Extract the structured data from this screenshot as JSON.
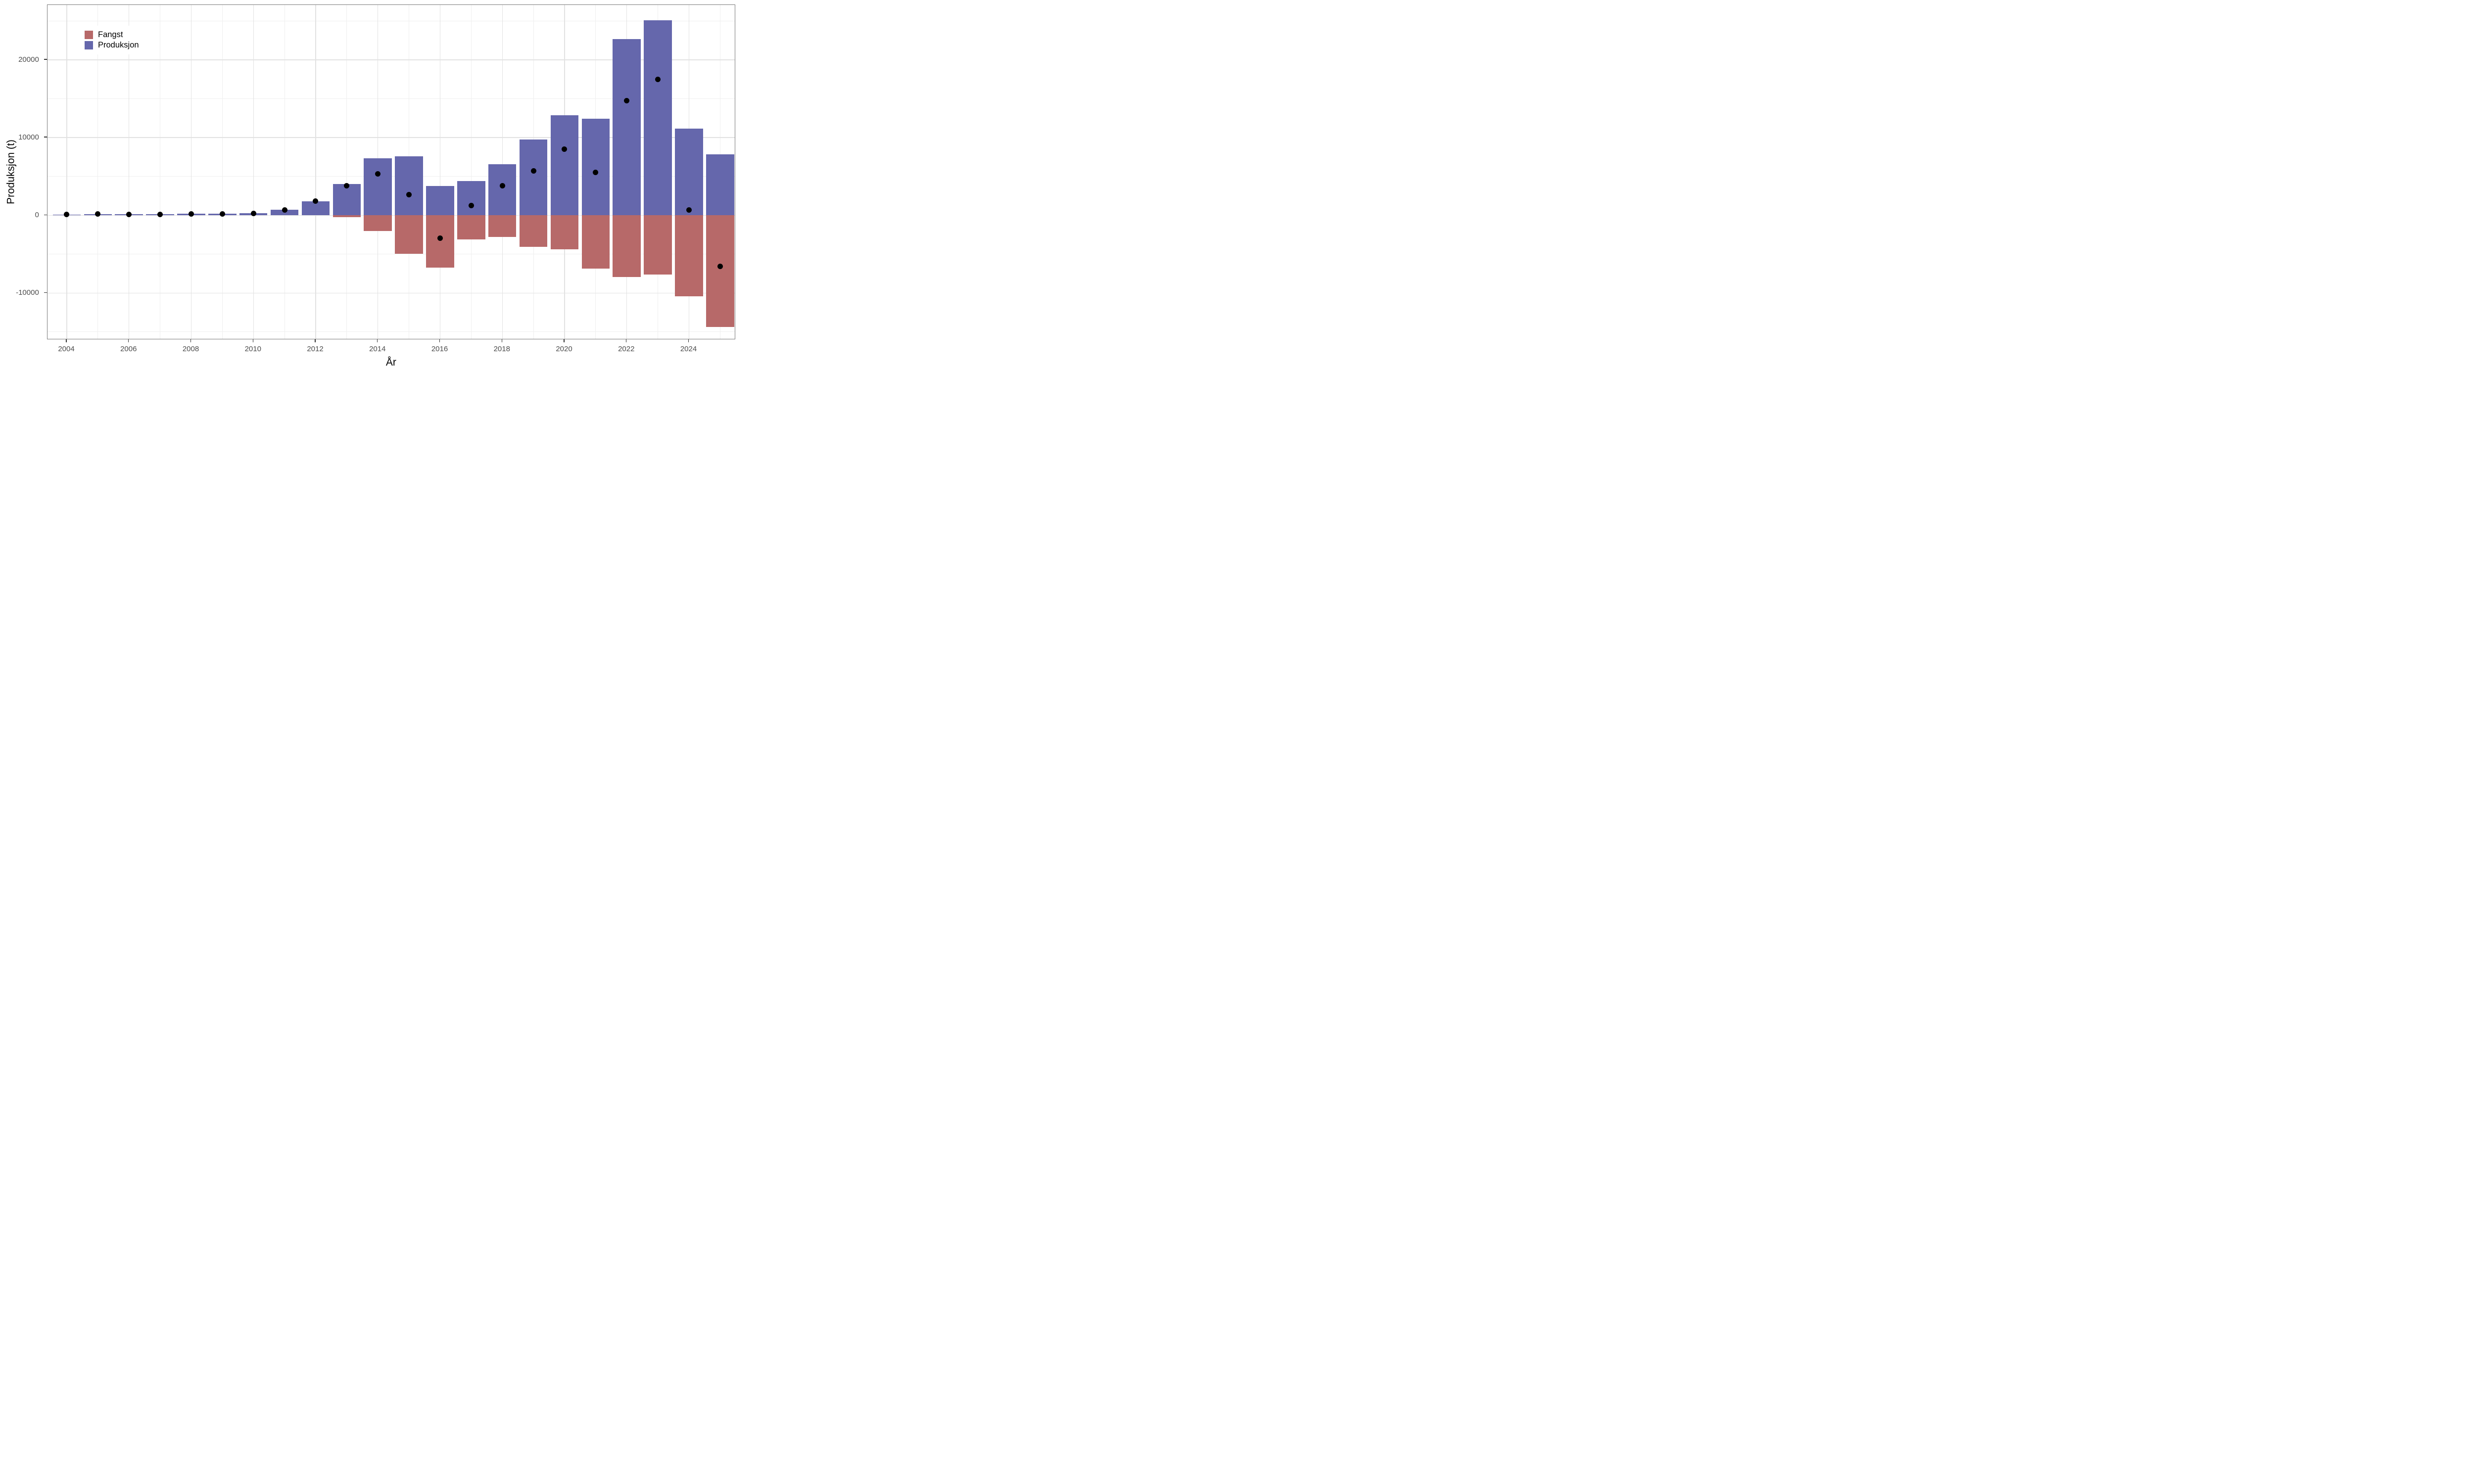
{
  "chart_data": {
    "type": "bar",
    "title": "",
    "xlabel": "År",
    "ylabel": "Produksjon (t)",
    "grid": true,
    "legend_position": "top-left-inside",
    "legend": [
      {
        "name": "Fangst",
        "color": "#b76969"
      },
      {
        "name": "Produksjon",
        "color": "#6567ac"
      }
    ],
    "point_color": "#000000",
    "x": [
      2004,
      2005,
      2006,
      2007,
      2008,
      2009,
      2010,
      2011,
      2012,
      2013,
      2014,
      2015,
      2016,
      2017,
      2018,
      2019,
      2020,
      2021,
      2022,
      2023,
      2024,
      2025
    ],
    "series": [
      {
        "name": "Produksjon",
        "geom": "bar",
        "color": "#6567ac",
        "values": [
          90,
          140,
          110,
          130,
          180,
          200,
          260,
          690,
          1810,
          4050,
          7350,
          7600,
          3760,
          4400,
          6600,
          9750,
          12900,
          12400,
          22700,
          25100,
          11150,
          7850
        ]
      },
      {
        "name": "Fangst",
        "geom": "bar",
        "color": "#b76969",
        "values": [
          0,
          0,
          0,
          0,
          0,
          0,
          0,
          0,
          0,
          -220,
          -2000,
          -4950,
          -6740,
          -3140,
          -2780,
          -4050,
          -4400,
          -6850,
          -7950,
          -7600,
          -10450,
          -14400
        ]
      },
      {
        "name": "Netto (punkt)",
        "geom": "point",
        "color": "#000000",
        "values": [
          90,
          140,
          110,
          130,
          180,
          200,
          260,
          690,
          1810,
          3830,
          5350,
          2650,
          -2980,
          1260,
          3820,
          5700,
          8500,
          5550,
          14750,
          17500,
          700,
          -6550
        ]
      }
    ],
    "x_tick_labels": [
      "2004",
      "2006",
      "2008",
      "2010",
      "2012",
      "2014",
      "2016",
      "2018",
      "2020",
      "2022",
      "2024"
    ],
    "x_tick_years": [
      2004,
      2006,
      2008,
      2010,
      2012,
      2014,
      2016,
      2018,
      2020,
      2022,
      2024
    ],
    "x_minor_years": [
      2005,
      2007,
      2009,
      2011,
      2013,
      2015,
      2017,
      2019,
      2021,
      2023,
      2025
    ],
    "y_tick_labels": [
      "-10000",
      "0",
      "10000",
      "20000"
    ],
    "y_tick_values": [
      -10000,
      0,
      10000,
      20000
    ],
    "y_minor_values": [
      -15000,
      -5000,
      5000,
      15000,
      25000
    ],
    "ylim": [
      -16050,
      27100
    ],
    "xlim_years": [
      2003.35,
      2025.5
    ]
  }
}
